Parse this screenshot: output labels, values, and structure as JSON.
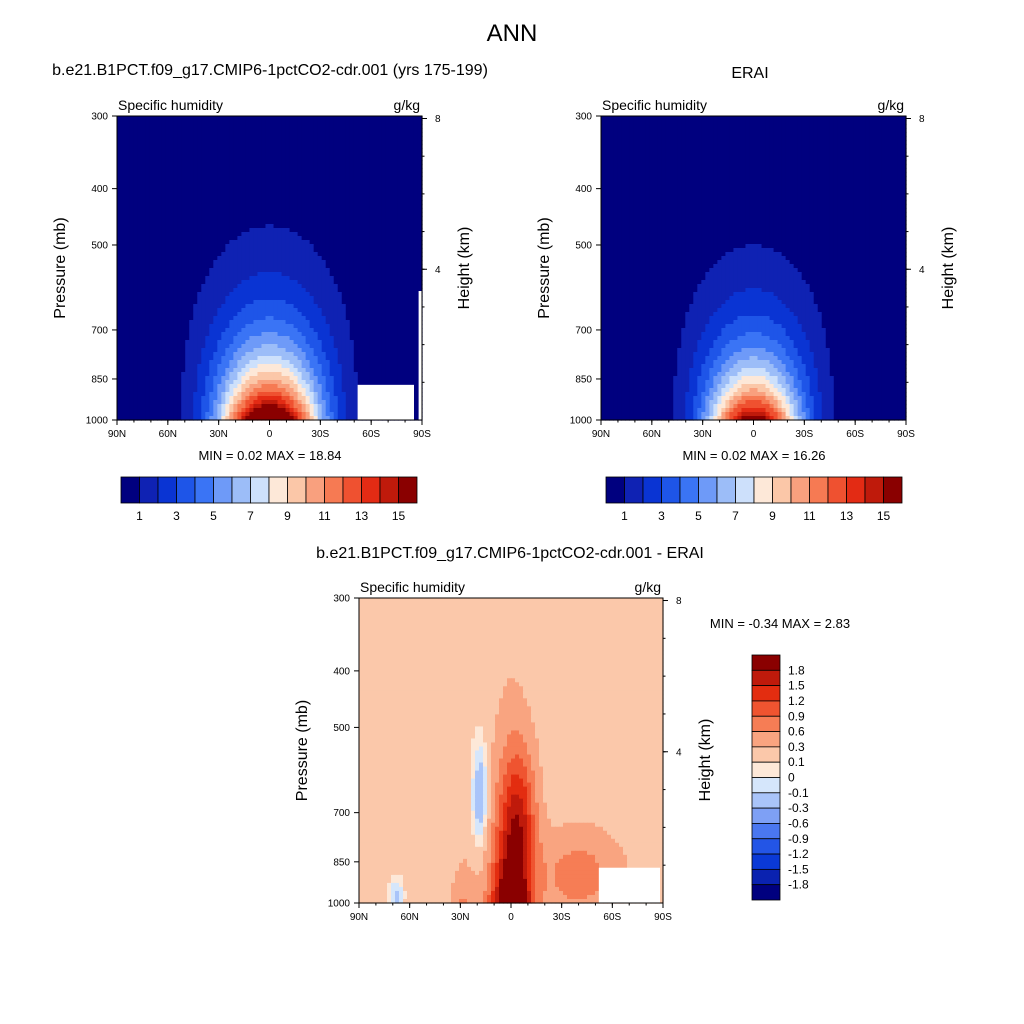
{
  "page": {
    "title": "ANN"
  },
  "colors": {
    "seq16": [
      "#00007f",
      "#0f22b3",
      "#0a34d3",
      "#1e55e8",
      "#3a74f5",
      "#6e9af8",
      "#9cbdf8",
      "#cde0fb",
      "#fde8d8",
      "#fbc7a8",
      "#f9a07e",
      "#f67a53",
      "#ef5130",
      "#e32b14",
      "#bf1a0b",
      "#8a0000"
    ],
    "diff16": [
      "#00007f",
      "#0a22b0",
      "#0a39d6",
      "#2355e6",
      "#4a77f0",
      "#7ea0f5",
      "#a9c4f9",
      "#d5e6fb",
      "#fde8d8",
      "#fbc8aa",
      "#f9a480",
      "#f67d55",
      "#ef5430",
      "#e32d10",
      "#bf1a0b",
      "#8a0000"
    ]
  },
  "chart_data": [
    {
      "type": "heatmap",
      "title": "b.e21.B1PCT.f09_g17.CMIP6-1pctCO2-cdr.001 (yrs 175-199)",
      "subtitle_left": "Specific humidity",
      "subtitle_right": "g/kg",
      "ylabel": "Pressure (mb)",
      "y2label": "Height (km)",
      "x_ticks": [
        "90N",
        "60N",
        "30N",
        "0",
        "30S",
        "60S",
        "90S"
      ],
      "y_ticks": [
        "300",
        "400",
        "500",
        "700",
        "850",
        "1000"
      ],
      "y2_ticks": [
        "8",
        "4"
      ],
      "x_range": [
        90,
        -90
      ],
      "y_range": [
        1000,
        300
      ],
      "y_scale": "log",
      "stats": "MIN =   0.02  MAX =  18.84",
      "min": 0.02,
      "max": 18.84,
      "colorbar_labels": [
        "1",
        "3",
        "5",
        "7",
        "9",
        "11",
        "13",
        "15"
      ],
      "levels": [
        1,
        2,
        3,
        4,
        5,
        6,
        7,
        8,
        9,
        10,
        11,
        12,
        13,
        14,
        15
      ],
      "field": {
        "peak": 18.84,
        "lat_center": 0,
        "lat_width": 30,
        "scale_height_km": 1.9
      }
    },
    {
      "type": "heatmap",
      "title": "ERAI",
      "subtitle_left": "Specific humidity",
      "subtitle_right": "g/kg",
      "ylabel": "Pressure (mb)",
      "y2label": "Height (km)",
      "x_ticks": [
        "90N",
        "60N",
        "30N",
        "0",
        "30S",
        "60S",
        "90S"
      ],
      "y_ticks": [
        "300",
        "400",
        "500",
        "700",
        "850",
        "1000"
      ],
      "y2_ticks": [
        "8",
        "4"
      ],
      "x_range": [
        90,
        -90
      ],
      "y_range": [
        1000,
        300
      ],
      "y_scale": "log",
      "stats": "MIN =   0.02  MAX =  16.26",
      "min": 0.02,
      "max": 16.26,
      "colorbar_labels": [
        "1",
        "3",
        "5",
        "7",
        "9",
        "11",
        "13",
        "15"
      ],
      "levels": [
        1,
        2,
        3,
        4,
        5,
        6,
        7,
        8,
        9,
        10,
        11,
        12,
        13,
        14,
        15
      ],
      "field": {
        "peak": 16.26,
        "lat_center": 0,
        "lat_width": 28,
        "scale_height_km": 1.8
      }
    },
    {
      "type": "heatmap",
      "title": "b.e21.B1PCT.f09_g17.CMIP6-1pctCO2-cdr.001 - ERAI",
      "subtitle_left": "Specific humidity",
      "subtitle_right": "g/kg",
      "ylabel": "Pressure (mb)",
      "y2label": "Height (km)",
      "x_ticks": [
        "90N",
        "60N",
        "30N",
        "0",
        "30S",
        "60S",
        "90S"
      ],
      "y_ticks": [
        "300",
        "400",
        "500",
        "700",
        "850",
        "1000"
      ],
      "y2_ticks": [
        "8",
        "4"
      ],
      "x_range": [
        90,
        -90
      ],
      "y_range": [
        1000,
        300
      ],
      "y_scale": "log",
      "stats": "MIN =  -0.34  MAX =   2.83",
      "min": -0.34,
      "max": 2.83,
      "colorbar_labels": [
        "1.8",
        "1.5",
        "1.2",
        "0.9",
        "0.6",
        "0.3",
        "0.1",
        "0",
        "-0.1",
        "-0.3",
        "-0.6",
        "-0.9",
        "-1.2",
        "-1.5",
        "-1.8"
      ],
      "levels": [
        -1.8,
        -1.5,
        -1.2,
        -0.9,
        -0.6,
        -0.3,
        -0.1,
        0,
        0.1,
        0.3,
        0.6,
        0.9,
        1.2,
        1.5,
        1.8
      ]
    }
  ]
}
